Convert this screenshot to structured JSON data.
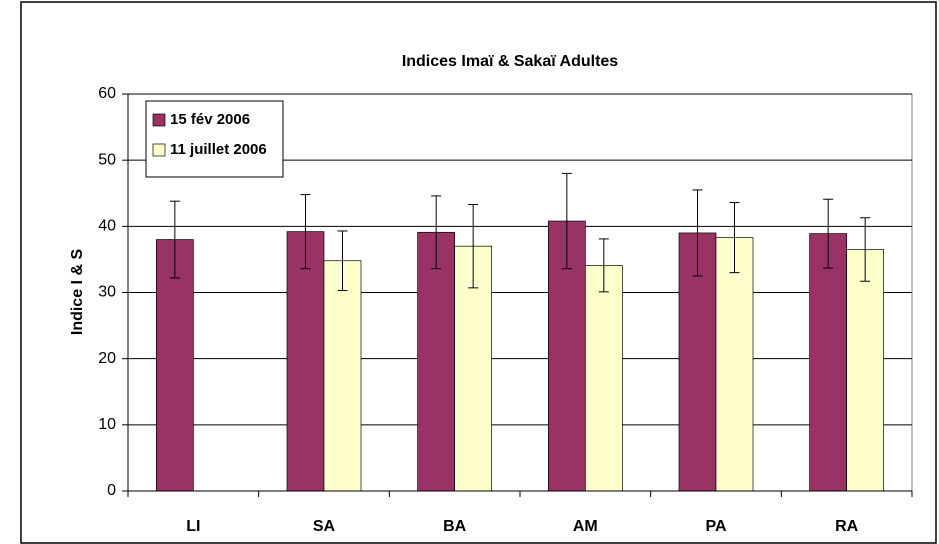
{
  "chart_data": {
    "type": "bar",
    "title": "Indices Imaï & Sakaï Adultes",
    "y_label": "Indice I & S",
    "categories": [
      "LI",
      "SA",
      "BA",
      "AM",
      "PA",
      "RA"
    ],
    "series": [
      {
        "name": "15 fév 2006",
        "color": "#993366",
        "values": [
          38,
          39.2,
          39.1,
          40.8,
          39,
          38.9
        ],
        "errors": [
          5.8,
          5.6,
          5.5,
          7.2,
          6.5,
          5.2
        ]
      },
      {
        "name": "11 juillet 2006",
        "color": "#FFFFCC",
        "values": [
          null,
          34.8,
          37,
          34.1,
          38.3,
          36.5
        ],
        "errors": [
          null,
          4.5,
          6.3,
          4,
          5.3,
          4.8
        ]
      }
    ],
    "ylim": [
      0,
      60
    ],
    "yticks": [
      0,
      10,
      20,
      30,
      40,
      50,
      60
    ],
    "grid": true,
    "legend": "top-left"
  }
}
